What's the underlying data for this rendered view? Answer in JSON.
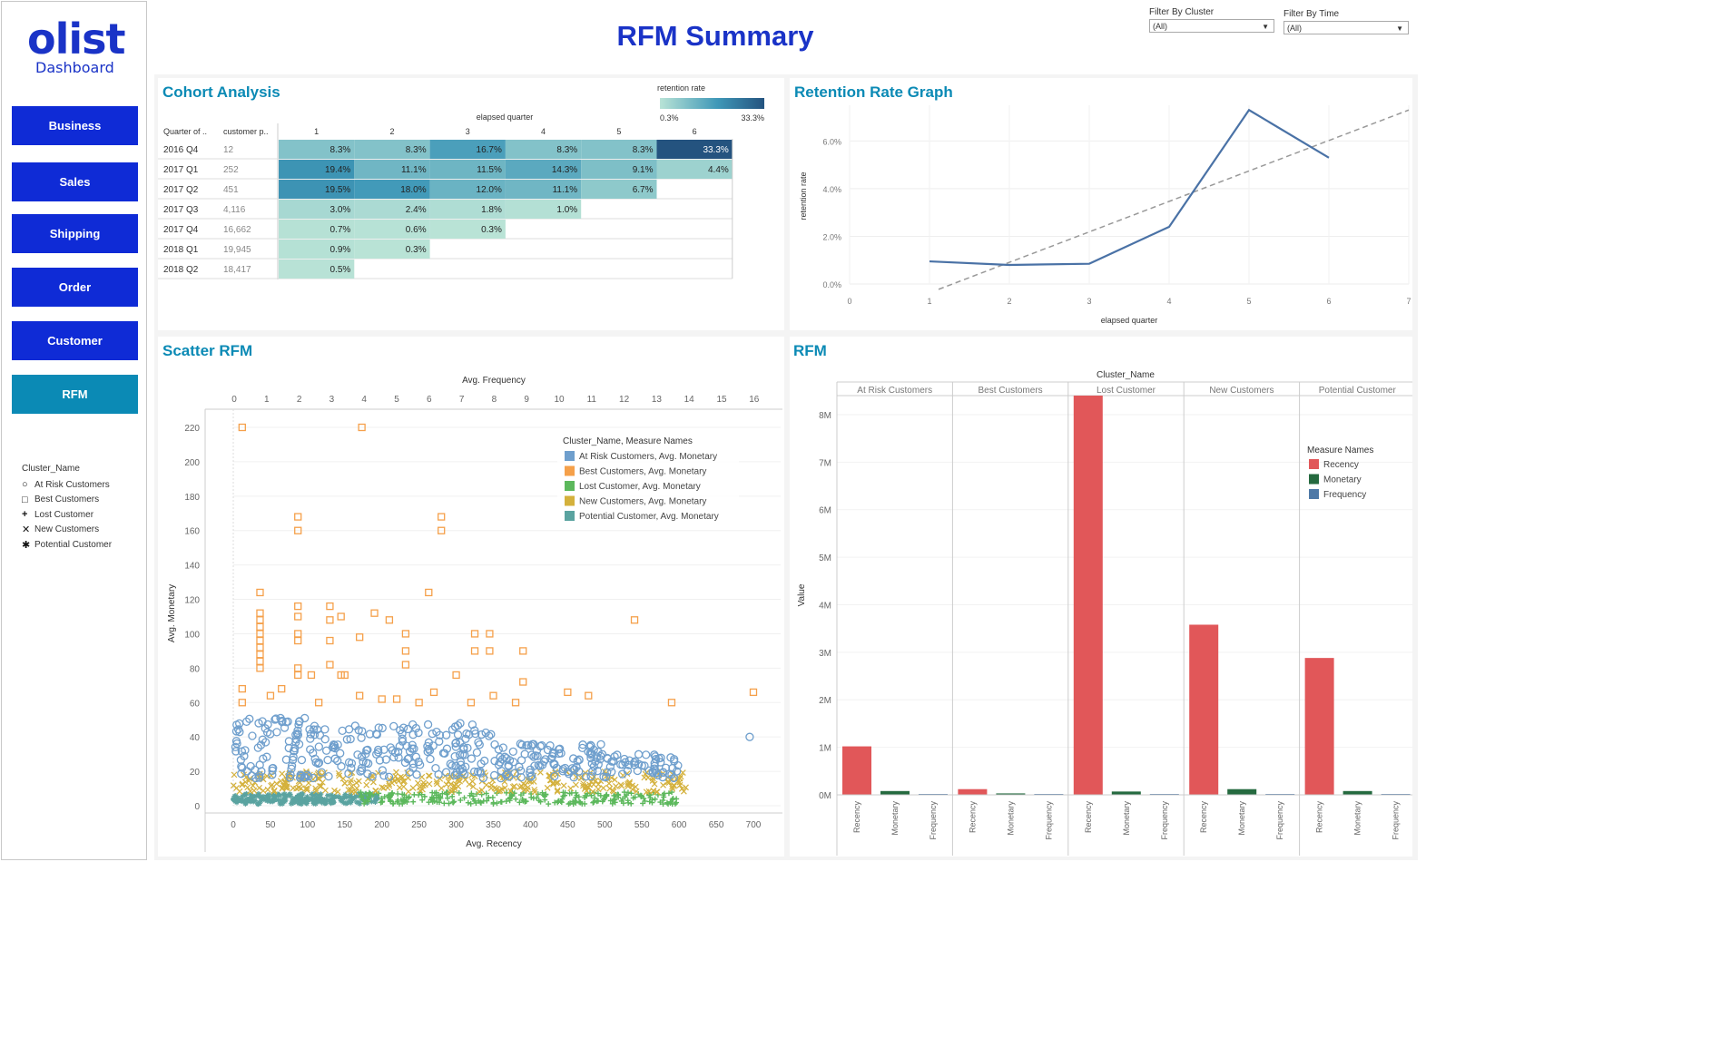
{
  "brand": {
    "logo": "olist",
    "subtitle": "Dashboard"
  },
  "page_title": "RFM Summary",
  "filters": [
    {
      "label": "Filter By Cluster",
      "value": "(All)"
    },
    {
      "label": "Filter By Time",
      "value": "(All)"
    }
  ],
  "nav": [
    {
      "label": "Business",
      "active": false
    },
    {
      "label": "Sales",
      "active": false
    },
    {
      "label": "Shipping",
      "active": false
    },
    {
      "label": "Order",
      "active": false
    },
    {
      "label": "Customer",
      "active": false
    },
    {
      "label": "RFM",
      "active": true
    }
  ],
  "cluster_legend": {
    "title": "Cluster_Name",
    "items": [
      {
        "label": "At Risk Customers",
        "icon": "circle-icon",
        "glyph": "○"
      },
      {
        "label": "Best Customers",
        "icon": "square-icon",
        "glyph": "□"
      },
      {
        "label": "Lost Customer",
        "icon": "plus-icon",
        "glyph": "+"
      },
      {
        "label": "New Customers",
        "icon": "cross-icon",
        "glyph": "✕"
      },
      {
        "label": "Potential Customer",
        "icon": "asterisk-icon",
        "glyph": "✱"
      }
    ]
  },
  "colors": {
    "accent": "#0b8ab5",
    "brand": "#1a33c7",
    "nav": "#0f2bd6",
    "heat_low": "#b9e3d6",
    "heat_high": "#24537f",
    "line": "#4a72a6",
    "recency": "#e15759",
    "monetary": "#256a3f",
    "frequency": "#4e79a7"
  },
  "cohort": {
    "title": "Cohort Analysis",
    "col_header_title": "elapsed quarter",
    "row_header_1": "Quarter of ..",
    "row_header_2": "customer p..",
    "columns": [
      "1",
      "2",
      "3",
      "4",
      "5",
      "6"
    ],
    "legend_title": "retention rate",
    "legend_min": "0.3%",
    "legend_max": "33.3%",
    "rows": [
      {
        "quarter": "2016 Q4",
        "customers": "12",
        "values": [
          8.3,
          8.3,
          16.7,
          8.3,
          8.3,
          33.3
        ],
        "labels": [
          "8.3%",
          "8.3%",
          "16.7%",
          "8.3%",
          "8.3%",
          "33.3%"
        ]
      },
      {
        "quarter": "2017 Q1",
        "customers": "252",
        "values": [
          19.4,
          11.1,
          11.5,
          14.3,
          9.1,
          4.4
        ],
        "labels": [
          "19.4%",
          "11.1%",
          "11.5%",
          "14.3%",
          "9.1%",
          "4.4%"
        ]
      },
      {
        "quarter": "2017 Q2",
        "customers": "451",
        "values": [
          19.5,
          18.0,
          12.0,
          11.1,
          6.7
        ],
        "labels": [
          "19.5%",
          "18.0%",
          "12.0%",
          "11.1%",
          "6.7%"
        ]
      },
      {
        "quarter": "2017 Q3",
        "customers": "4,116",
        "values": [
          3.0,
          2.4,
          1.8,
          1.0
        ],
        "labels": [
          "3.0%",
          "2.4%",
          "1.8%",
          "1.0%"
        ]
      },
      {
        "quarter": "2017 Q4",
        "customers": "16,662",
        "values": [
          0.7,
          0.6,
          0.3
        ],
        "labels": [
          "0.7%",
          "0.6%",
          "0.3%"
        ]
      },
      {
        "quarter": "2018 Q1",
        "customers": "19,945",
        "values": [
          0.9,
          0.3
        ],
        "labels": [
          "0.9%",
          "0.3%"
        ]
      },
      {
        "quarter": "2018 Q2",
        "customers": "18,417",
        "values": [
          0.5
        ],
        "labels": [
          "0.5%"
        ]
      }
    ]
  },
  "chart_data": [
    {
      "type": "line",
      "title": "Retention Rate Graph",
      "xlabel": "elapsed quarter",
      "ylabel": "retention rate",
      "x_ticks": [
        "0",
        "1",
        "2",
        "3",
        "4",
        "5",
        "6",
        "7"
      ],
      "y_ticks": [
        "0.0%",
        "2.0%",
        "4.0%",
        "6.0%"
      ],
      "xlim": [
        0,
        7
      ],
      "ylim": [
        0,
        7.5
      ],
      "series": [
        {
          "x": [
            1,
            2,
            3,
            4,
            5,
            6
          ],
          "y": [
            0.95,
            0.8,
            0.85,
            2.4,
            7.3,
            5.3
          ]
        }
      ],
      "trend": {
        "x": [
          1,
          7
        ],
        "y": [
          -0.3,
          7.3
        ]
      }
    },
    {
      "type": "scatter",
      "title": "Scatter RFM",
      "xlabel": "Avg. Recency",
      "x2label": "Avg. Frequency",
      "ylabel": "Avg. Monetary",
      "x_ticks": [
        "0",
        "50",
        "100",
        "150",
        "200",
        "250",
        "300",
        "350",
        "400",
        "450",
        "500",
        "550",
        "600",
        "650",
        "700"
      ],
      "x2_ticks": [
        "0",
        "1",
        "2",
        "3",
        "4",
        "5",
        "6",
        "7",
        "8",
        "9",
        "10",
        "11",
        "12",
        "13",
        "14",
        "15",
        "16"
      ],
      "y_ticks": [
        "0",
        "20",
        "40",
        "60",
        "80",
        "100",
        "120",
        "140",
        "160",
        "180",
        "200",
        "220"
      ],
      "xlim": [
        0,
        700
      ],
      "x2lim": [
        0,
        16
      ],
      "ylim": [
        0,
        220
      ],
      "legend_title": "Cluster_Name, Measure Names",
      "series": [
        {
          "name": "At Risk Customers, Avg. Monetary",
          "color": "#6f9fcd",
          "marker": "circle"
        },
        {
          "name": "Best Customers, Avg. Monetary",
          "color": "#f5a04a",
          "marker": "square"
        },
        {
          "name": "Lost Customer, Avg. Monetary",
          "color": "#5cb85c",
          "marker": "plus"
        },
        {
          "name": "New Customers, Avg. Monetary",
          "color": "#d4b13c",
          "marker": "cross"
        },
        {
          "name": "Potential Customer, Avg. Monetary",
          "color": "#5aa3a0",
          "marker": "asterisk"
        }
      ],
      "best_points": [
        [
          12,
          220
        ],
        [
          173,
          220
        ],
        [
          87,
          168
        ],
        [
          87,
          160
        ],
        [
          280,
          168
        ],
        [
          280,
          160
        ],
        [
          36,
          124
        ],
        [
          263,
          124
        ],
        [
          36,
          112
        ],
        [
          36,
          108
        ],
        [
          36,
          104
        ],
        [
          36,
          100
        ],
        [
          36,
          96
        ],
        [
          36,
          92
        ],
        [
          36,
          88
        ],
        [
          36,
          84
        ],
        [
          36,
          80
        ],
        [
          87,
          116
        ],
        [
          87,
          110
        ],
        [
          87,
          100
        ],
        [
          87,
          96
        ],
        [
          87,
          80
        ],
        [
          87,
          76
        ],
        [
          130,
          116
        ],
        [
          130,
          108
        ],
        [
          130,
          96
        ],
        [
          130,
          82
        ],
        [
          145,
          110
        ],
        [
          145,
          76
        ],
        [
          170,
          98
        ],
        [
          190,
          112
        ],
        [
          210,
          108
        ],
        [
          232,
          100
        ],
        [
          232,
          90
        ],
        [
          232,
          82
        ],
        [
          325,
          100
        ],
        [
          325,
          90
        ],
        [
          345,
          100
        ],
        [
          345,
          90
        ],
        [
          390,
          90
        ],
        [
          390,
          72
        ],
        [
          540,
          108
        ],
        [
          450,
          66
        ],
        [
          478,
          64
        ],
        [
          12,
          68
        ],
        [
          12,
          60
        ],
        [
          50,
          64
        ],
        [
          65,
          68
        ],
        [
          105,
          76
        ],
        [
          115,
          60
        ],
        [
          150,
          76
        ],
        [
          170,
          64
        ],
        [
          200,
          62
        ],
        [
          220,
          62
        ],
        [
          250,
          60
        ],
        [
          270,
          66
        ],
        [
          300,
          76
        ],
        [
          320,
          60
        ],
        [
          350,
          64
        ],
        [
          380,
          60
        ],
        [
          700,
          66
        ],
        [
          590,
          60
        ]
      ],
      "risk_outlier": [
        695,
        40
      ]
    },
    {
      "type": "bar",
      "title": "RFM",
      "column_header": "Cluster_Name",
      "ylabel": "Value",
      "y_ticks": [
        "0M",
        "1M",
        "2M",
        "3M",
        "4M",
        "5M",
        "6M",
        "7M",
        "8M"
      ],
      "ylim": [
        0,
        8.4
      ],
      "categories": [
        "At Risk Customers",
        "Best Customers",
        "Lost Customer",
        "New Customers",
        "Potential Customer"
      ],
      "measures": [
        "Recency",
        "Monetary",
        "Frequency"
      ],
      "legend_title": "Measure Names",
      "series": [
        {
          "name": "Recency",
          "values": [
            1.02,
            0.12,
            8.4,
            3.58,
            2.88
          ]
        },
        {
          "name": "Monetary",
          "values": [
            0.08,
            0.03,
            0.07,
            0.12,
            0.08
          ]
        },
        {
          "name": "Frequency",
          "values": [
            0.0,
            0.0,
            0.0,
            0.0,
            0.0
          ]
        }
      ]
    }
  ]
}
